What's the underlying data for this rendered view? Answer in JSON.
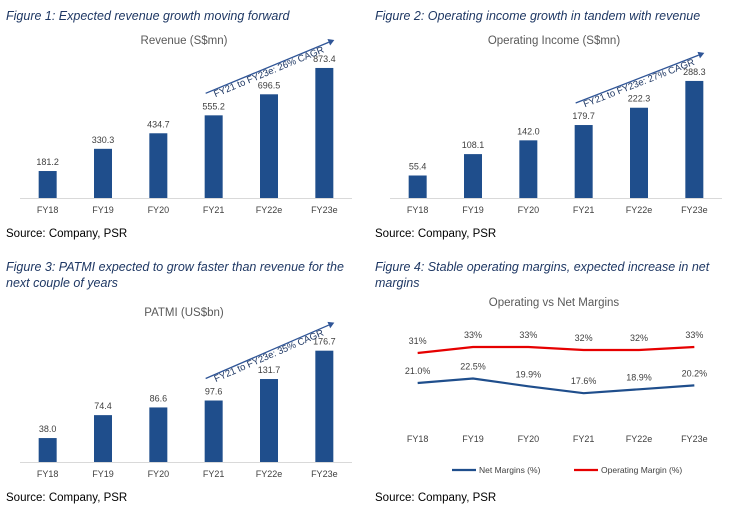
{
  "figures": [
    {
      "caption": "Figure 1: Expected revenue growth moving forward",
      "source": "Source: Company, PSR",
      "chart_data": {
        "type": "bar",
        "title": "Revenue (S$mn)",
        "categories": [
          "FY18",
          "FY19",
          "FY20",
          "FY21",
          "FY22e",
          "FY23e"
        ],
        "values": [
          181.2,
          330.3,
          434.7,
          555.2,
          696.5,
          873.4
        ],
        "value_labels": [
          "181.2",
          "330.3",
          "434.7",
          "555.2",
          "696.5",
          "873.4"
        ],
        "annotation": "FY21 to FY23e: 26% CAGR",
        "color": "#1f4e8c"
      }
    },
    {
      "caption": "Figure 2: Operating income growth in tandem with revenue",
      "source": "Source: Company, PSR",
      "chart_data": {
        "type": "bar",
        "title": "Operating Income (S$mn)",
        "categories": [
          "FY18",
          "FY19",
          "FY20",
          "FY21",
          "FY22e",
          "FY23e"
        ],
        "values": [
          55.4,
          108.1,
          142.0,
          179.7,
          222.3,
          288.3
        ],
        "value_labels": [
          "55.4",
          "108.1",
          "142.0",
          "179.7",
          "222.3",
          "288.3"
        ],
        "annotation": "FY21 to FY23e: 27% CAGR",
        "color": "#1f4e8c"
      }
    },
    {
      "caption": "Figure 3: PATMI expected to grow faster than revenue for the next couple of years",
      "source": "Source: Company, PSR",
      "chart_data": {
        "type": "bar",
        "title": "PATMI (US$bn)",
        "categories": [
          "FY18",
          "FY19",
          "FY20",
          "FY21",
          "FY22e",
          "FY23e"
        ],
        "values": [
          38.0,
          74.4,
          86.6,
          97.6,
          131.7,
          176.7
        ],
        "value_labels": [
          "38.0",
          "74.4",
          "86.6",
          "97.6",
          "131.7",
          "176.7"
        ],
        "annotation": "FY21 to FY23e: 35% CAGR",
        "color": "#1f4e8c"
      }
    },
    {
      "caption": "Figure 4: Stable operating margins, expected increase in net margins",
      "source": "Source: Company, PSR",
      "chart_data": {
        "type": "line",
        "title": "Operating vs Net Margins",
        "categories": [
          "FY18",
          "FY19",
          "FY20",
          "FY21",
          "FY22e",
          "FY23e"
        ],
        "series": [
          {
            "name": "Net Margins (%)",
            "values": [
              21.0,
              22.5,
              19.9,
              17.6,
              18.9,
              20.2
            ],
            "labels": [
              "21.0%",
              "22.5%",
              "19.9%",
              "17.6%",
              "18.9%",
              "20.2%"
            ],
            "color": "#1f4e8c"
          },
          {
            "name": "Operating Margin (%)",
            "values": [
              31,
              33,
              33,
              32,
              32,
              33
            ],
            "labels": [
              "31%",
              "33%",
              "33%",
              "32%",
              "32%",
              "33%"
            ],
            "color": "#e60000"
          }
        ],
        "legend": "bottom"
      }
    }
  ]
}
